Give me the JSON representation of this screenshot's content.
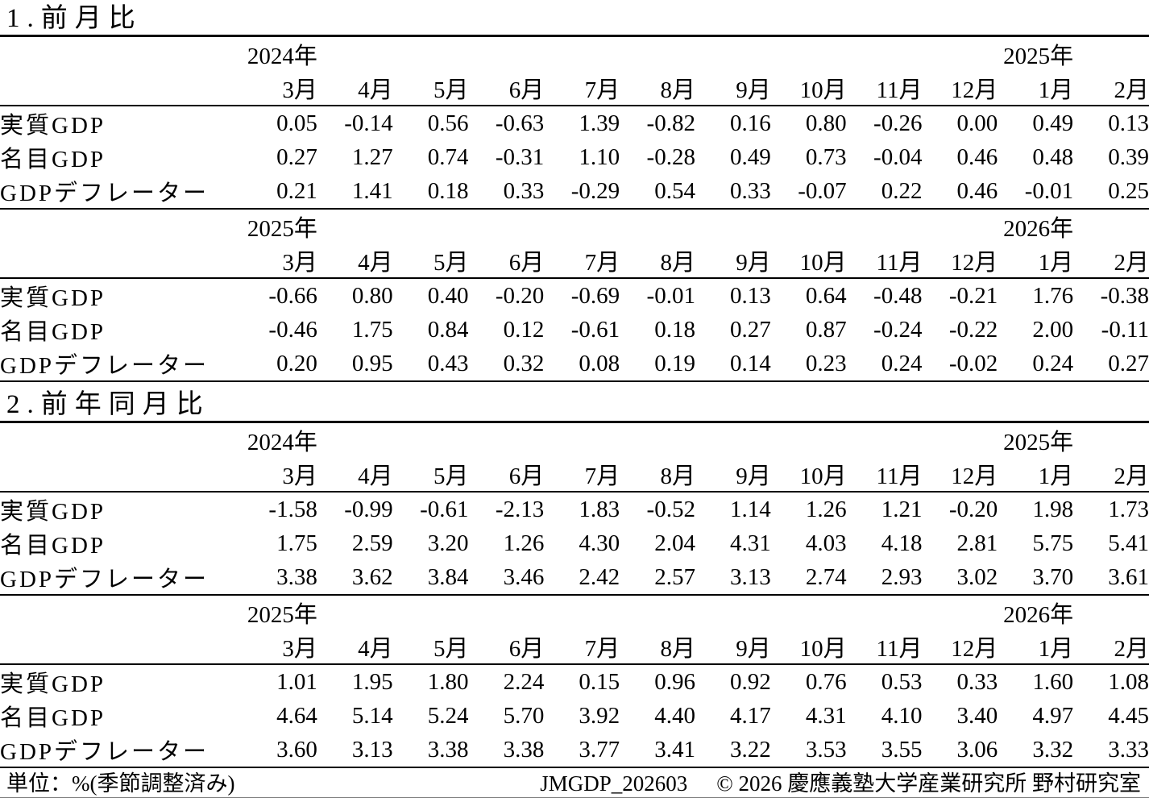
{
  "document": {
    "section1_title": "1.前月比",
    "section2_title": "2.前年同月比",
    "footer": {
      "unit_note": "単位：%(季節調整済み)",
      "doc_code": "JMGDP_202603",
      "copyright": "© 2026 慶應義塾大学産業研究所 野村研究室"
    }
  },
  "months": [
    "3月",
    "4月",
    "5月",
    "6月",
    "7月",
    "8月",
    "9月",
    "10月",
    "11月",
    "12月",
    "1月",
    "2月"
  ],
  "tables": [
    {
      "section": "前月比",
      "year_left": "2024年",
      "year_right": "2025年",
      "rows": [
        {
          "label": "実質GDP",
          "values": [
            "0.05",
            "-0.14",
            "0.56",
            "-0.63",
            "1.39",
            "-0.82",
            "0.16",
            "0.80",
            "-0.26",
            "0.00",
            "0.49",
            "0.13"
          ]
        },
        {
          "label": "名目GDP",
          "values": [
            "0.27",
            "1.27",
            "0.74",
            "-0.31",
            "1.10",
            "-0.28",
            "0.49",
            "0.73",
            "-0.04",
            "0.46",
            "0.48",
            "0.39"
          ]
        },
        {
          "label": "GDPデフレーター",
          "values": [
            "0.21",
            "1.41",
            "0.18",
            "0.33",
            "-0.29",
            "0.54",
            "0.33",
            "-0.07",
            "0.22",
            "0.46",
            "-0.01",
            "0.25"
          ]
        }
      ]
    },
    {
      "section": "前月比",
      "year_left": "2025年",
      "year_right": "2026年",
      "rows": [
        {
          "label": "実質GDP",
          "values": [
            "-0.66",
            "0.80",
            "0.40",
            "-0.20",
            "-0.69",
            "-0.01",
            "0.13",
            "0.64",
            "-0.48",
            "-0.21",
            "1.76",
            "-0.38"
          ]
        },
        {
          "label": "名目GDP",
          "values": [
            "-0.46",
            "1.75",
            "0.84",
            "0.12",
            "-0.61",
            "0.18",
            "0.27",
            "0.87",
            "-0.24",
            "-0.22",
            "2.00",
            "-0.11"
          ]
        },
        {
          "label": "GDPデフレーター",
          "values": [
            "0.20",
            "0.95",
            "0.43",
            "0.32",
            "0.08",
            "0.19",
            "0.14",
            "0.23",
            "0.24",
            "-0.02",
            "0.24",
            "0.27"
          ]
        }
      ]
    },
    {
      "section": "前年同月比",
      "year_left": "2024年",
      "year_right": "2025年",
      "rows": [
        {
          "label": "実質GDP",
          "values": [
            "-1.58",
            "-0.99",
            "-0.61",
            "-2.13",
            "1.83",
            "-0.52",
            "1.14",
            "1.26",
            "1.21",
            "-0.20",
            "1.98",
            "1.73"
          ]
        },
        {
          "label": "名目GDP",
          "values": [
            "1.75",
            "2.59",
            "3.20",
            "1.26",
            "4.30",
            "2.04",
            "4.31",
            "4.03",
            "4.18",
            "2.81",
            "5.75",
            "5.41"
          ]
        },
        {
          "label": "GDPデフレーター",
          "values": [
            "3.38",
            "3.62",
            "3.84",
            "3.46",
            "2.42",
            "2.57",
            "3.13",
            "2.74",
            "2.93",
            "3.02",
            "3.70",
            "3.61"
          ]
        }
      ]
    },
    {
      "section": "前年同月比",
      "year_left": "2025年",
      "year_right": "2026年",
      "rows": [
        {
          "label": "実質GDP",
          "values": [
            "1.01",
            "1.95",
            "1.80",
            "2.24",
            "0.15",
            "0.96",
            "0.92",
            "0.76",
            "0.53",
            "0.33",
            "1.60",
            "1.08"
          ]
        },
        {
          "label": "名目GDP",
          "values": [
            "4.64",
            "5.14",
            "5.24",
            "5.70",
            "3.92",
            "4.40",
            "4.17",
            "4.31",
            "4.10",
            "3.40",
            "4.97",
            "4.45"
          ]
        },
        {
          "label": "GDPデフレーター",
          "values": [
            "3.60",
            "3.13",
            "3.38",
            "3.38",
            "3.77",
            "3.41",
            "3.22",
            "3.53",
            "3.55",
            "3.06",
            "3.32",
            "3.33"
          ]
        }
      ]
    }
  ],
  "colors": {
    "text": "#000000",
    "background": "#ffffff",
    "rule": "#000000"
  }
}
